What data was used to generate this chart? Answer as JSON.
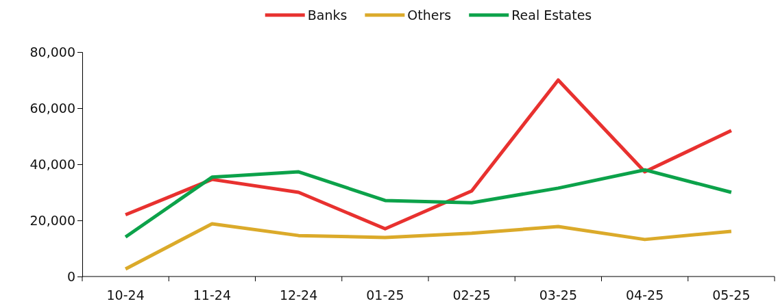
{
  "chart_data": {
    "type": "line",
    "categories": [
      "10-24",
      "11-24",
      "12-24",
      "01-25",
      "02-25",
      "03-25",
      "04-25",
      "05-25"
    ],
    "series": [
      {
        "name": "Banks",
        "color": "#e8312f",
        "values": [
          22000,
          34600,
          30000,
          17000,
          30500,
          70000,
          37300,
          52000
        ]
      },
      {
        "name": "Others",
        "color": "#dbaa2a",
        "values": [
          2700,
          18800,
          14600,
          13900,
          15400,
          17800,
          13200,
          16100
        ]
      },
      {
        "name": "Real Estates",
        "color": "#0ca24a",
        "values": [
          14100,
          35400,
          37300,
          27100,
          26300,
          31500,
          38000,
          30000
        ]
      }
    ],
    "ylim": [
      0,
      80000
    ],
    "yticks": [
      {
        "value": 0,
        "label": "0"
      },
      {
        "value": 20000,
        "label": "20,000"
      },
      {
        "value": 40000,
        "label": "40,000"
      },
      {
        "value": 60000,
        "label": "60,000"
      },
      {
        "value": 80000,
        "label": "80,000"
      }
    ],
    "legend": "top",
    "marker": "none",
    "line_style": "solid",
    "grid": false
  }
}
